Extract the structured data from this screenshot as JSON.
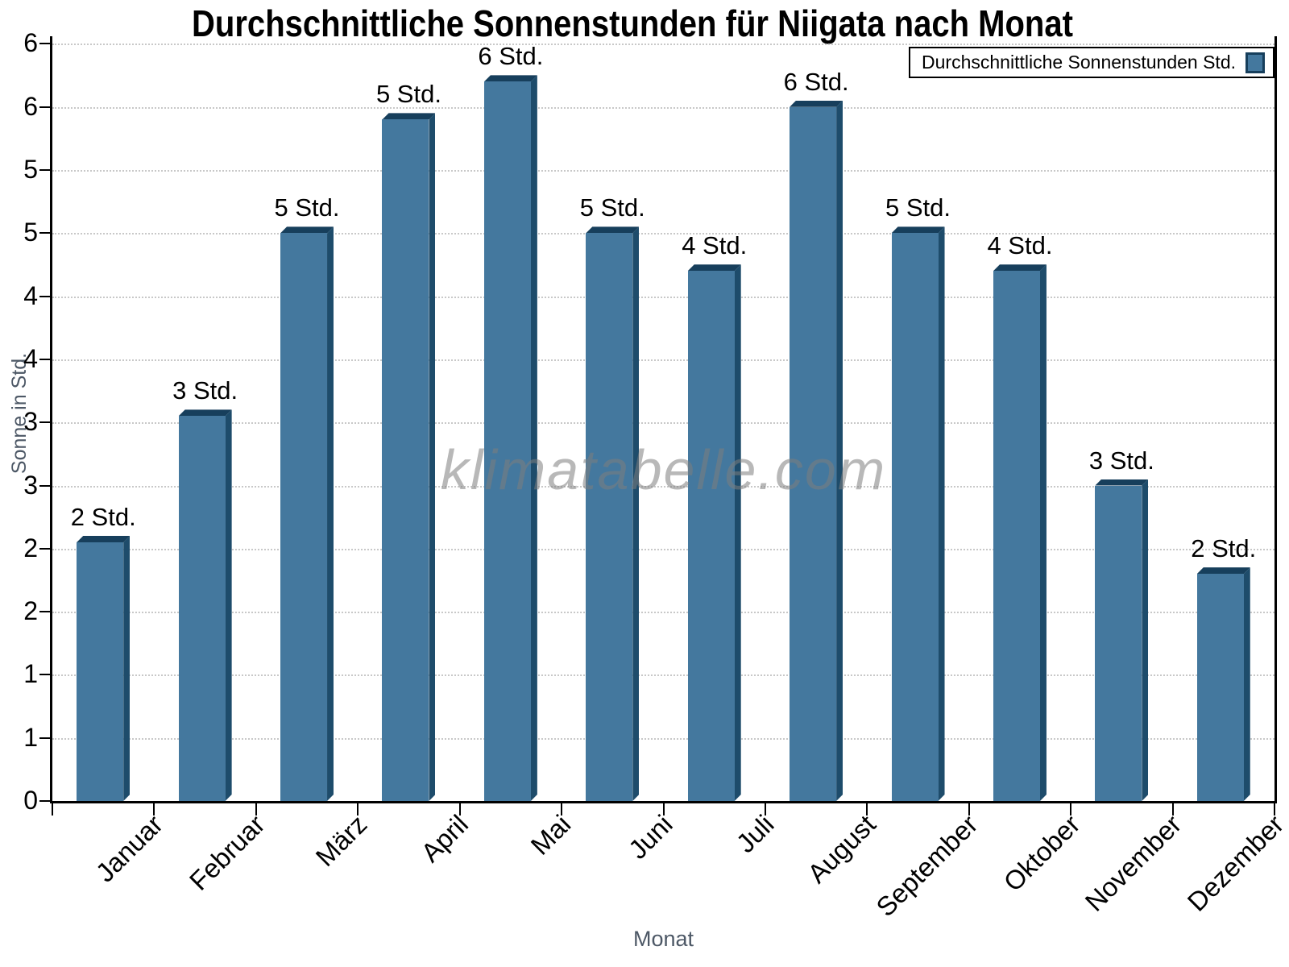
{
  "watermark": {
    "text": "klimatabelle.com"
  },
  "colors": {
    "bar": "#44789E",
    "bar_side": "#1E4C6B",
    "bar_top": "#173F5C",
    "grid": "#C8C8C8",
    "axis": "#000000",
    "axis_title": "#4D5866",
    "watermark": "rgba(125,125,125,0.55)"
  },
  "chart_data": {
    "type": "bar",
    "title": "Durchschnittliche Sonnenstunden für Niigata nach Monat",
    "xlabel": "Monat",
    "ylabel": "Sonne in Std.",
    "categories": [
      "Januar",
      "Februar",
      "März",
      "April",
      "Mai",
      "Juni",
      "Juli",
      "August",
      "September",
      "Oktober",
      "November",
      "Dezember"
    ],
    "series": [
      {
        "name": "Durchschnittliche Sonnenstunden Std.",
        "values": [
          2.05,
          3.05,
          4.5,
          5.4,
          5.7,
          4.5,
          4.2,
          5.5,
          4.5,
          4.2,
          2.5,
          1.8
        ],
        "point_labels": [
          "2 Std.",
          "3 Std.",
          "5 Std.",
          "5 Std.",
          "6 Std.",
          "5 Std.",
          "4 Std.",
          "6 Std.",
          "5 Std.",
          "4 Std.",
          "3 Std.",
          "2 Std."
        ]
      }
    ],
    "ylim": [
      0,
      6.06
    ],
    "ytick_step": 0.5,
    "ytick_labels": [
      "0",
      "1",
      "1",
      "2",
      "2",
      "3",
      "3",
      "4",
      "4",
      "5",
      "5",
      "6",
      "6"
    ],
    "grid": "horizontal-dotted",
    "legend_position": "top-right"
  }
}
